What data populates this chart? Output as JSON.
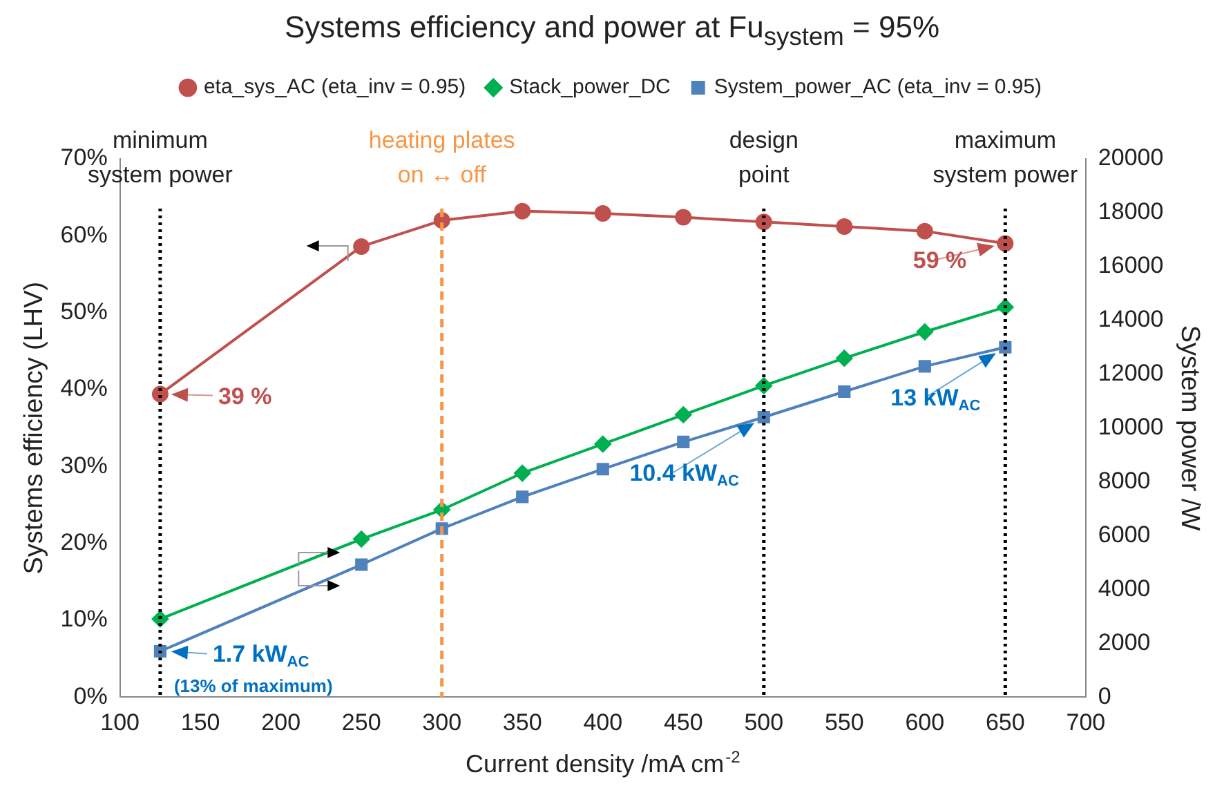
{
  "chart_data": {
    "type": "line",
    "title": "Systems efficiency and power at Fu$_{system}$ = 95%",
    "xlabel": "Current density /mA cm$^{-2}$",
    "ylabel": "Systems efficiency (LHV)",
    "y2label": "System power /W",
    "x": [
      125,
      250,
      300,
      350,
      400,
      450,
      500,
      550,
      600,
      650
    ],
    "series": [
      {
        "name": "eta_sys_AC (eta_inv = 0.95)",
        "color": "#c0504d",
        "marker": "circle",
        "values": [
          39.4,
          58.6,
          62.0,
          63.2,
          62.9,
          62.4,
          61.8,
          61.2,
          60.6,
          59.0
        ]
      },
      {
        "name": "Stack_power_DC",
        "color": "#00b050",
        "marker": "diamond",
        "axis": "y2",
        "values": [
          2900,
          5870,
          6960,
          8320,
          9400,
          10490,
          11570,
          12590,
          13570,
          14490
        ]
      },
      {
        "name": "System_power_AC (eta_inv = 0.95)",
        "color": "#4f81bd",
        "marker": "square",
        "axis": "y2",
        "values": [
          1700,
          4920,
          6260,
          7440,
          8470,
          9480,
          10400,
          11350,
          12290,
          13000
        ]
      }
    ],
    "xlim": [
      100,
      700
    ],
    "xticks": [
      100,
      150,
      200,
      250,
      300,
      350,
      400,
      450,
      500,
      550,
      600,
      650,
      700
    ],
    "ylim": [
      0,
      70
    ],
    "yticks": [
      {
        "value": 0,
        "label": "0%"
      },
      {
        "value": 10,
        "label": "10%"
      },
      {
        "value": 20,
        "label": "20%"
      },
      {
        "value": 30,
        "label": "30%"
      },
      {
        "value": 40,
        "label": "40%"
      },
      {
        "value": 50,
        "label": "50%"
      },
      {
        "value": 60,
        "label": "60%"
      },
      {
        "value": 70,
        "label": "70%"
      }
    ],
    "y2lim": [
      0,
      20000
    ],
    "y2ticks": [
      0,
      2000,
      4000,
      6000,
      8000,
      10000,
      12000,
      14000,
      16000,
      18000,
      20000
    ],
    "ref_lines": [
      {
        "axis": "x",
        "value": 125,
        "label": "minimum\nsystem power",
        "color": "#000000",
        "line_style": "dotted"
      },
      {
        "axis": "x",
        "value": 300,
        "label": "heating plates\non ↔ off",
        "color": "#f79646",
        "line_style": "dashed"
      },
      {
        "axis": "x",
        "value": 500,
        "label": "design\npoint",
        "color": "#000000",
        "line_style": "dotted"
      },
      {
        "axis": "x",
        "value": 650,
        "label": "maximum\nsystem power",
        "color": "#000000",
        "line_style": "dotted"
      }
    ],
    "annotations": [
      {
        "text": "39 %",
        "x": 125,
        "y": 39.4
      },
      {
        "text": "59 %",
        "x": 650,
        "y": 59.0
      },
      {
        "text": "1.7 kW$_{AC}$\n(13% of maximum)",
        "x": 125,
        "y": 6.0
      },
      {
        "text": "10.4 kW$_{AC}$",
        "x": 500,
        "y": 36.4
      },
      {
        "text": "13 kW$_{AC}$",
        "x": 650,
        "y": 45.5
      }
    ],
    "legend": "top",
    "grid": false,
    "line_style": "solid"
  }
}
